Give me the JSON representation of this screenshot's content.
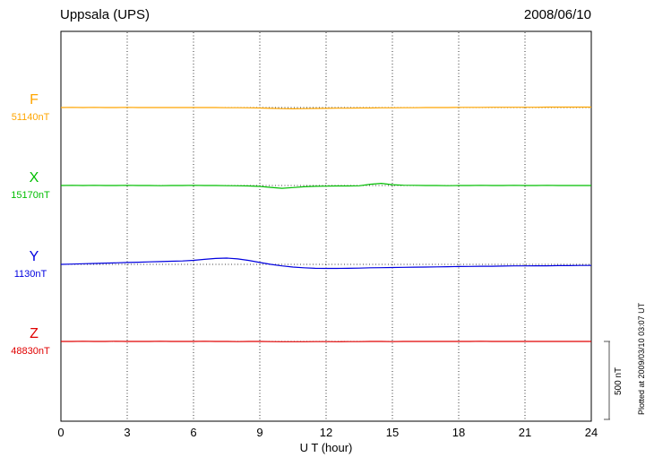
{
  "chart_data": {
    "type": "line",
    "title": "Uppsala (UPS)",
    "date": "2008/06/10",
    "xlabel": "U T (hour)",
    "x_ticks": [
      0,
      3,
      6,
      9,
      12,
      15,
      18,
      21,
      24
    ],
    "xlim": [
      0,
      24
    ],
    "x_step_hours": 0.5,
    "scale_label": "500 nT",
    "plotted_at": "Plotted at 2009/03/10 03:07 UT",
    "grid": "dotted-vertical-every-3h, dotted-horizontal-baseline-per-trace",
    "series": [
      {
        "name": "F",
        "baseline_label": "51140nT",
        "color": "#FFA500",
        "offsets_nT": [
          0,
          1,
          0,
          1,
          0,
          0,
          1,
          0,
          0,
          0,
          0,
          0,
          0,
          0,
          0,
          -1,
          -1,
          -2,
          -3,
          -5,
          -7,
          -8,
          -7,
          -6,
          -5,
          -4,
          -4,
          -3,
          -3,
          -2,
          -2,
          -1,
          -1,
          0,
          0,
          0,
          1,
          1,
          1,
          2,
          2,
          2,
          2,
          2,
          3,
          3,
          3,
          3,
          3
        ]
      },
      {
        "name": "X",
        "baseline_label": "15170nT",
        "color": "#00BE00",
        "offsets_nT": [
          0,
          1,
          0,
          1,
          0,
          0,
          1,
          0,
          0,
          -1,
          0,
          0,
          1,
          0,
          0,
          -1,
          -2,
          -3,
          -6,
          -12,
          -18,
          -13,
          -8,
          -5,
          -4,
          -3,
          -3,
          -2,
          8,
          14,
          5,
          2,
          1,
          0,
          0,
          -1,
          0,
          0,
          1,
          0,
          0,
          1,
          0,
          0,
          1,
          0,
          0,
          0,
          0
        ]
      },
      {
        "name": "Y",
        "baseline_label": "1130nT",
        "color": "#0000E0",
        "offsets_nT": [
          0,
          2,
          4,
          6,
          8,
          10,
          12,
          14,
          16,
          18,
          20,
          22,
          26,
          32,
          38,
          40,
          35,
          25,
          12,
          0,
          -10,
          -17,
          -22,
          -25,
          -26,
          -26,
          -25,
          -24,
          -22,
          -21,
          -20,
          -19,
          -18,
          -17,
          -16,
          -15,
          -14,
          -13,
          -12,
          -12,
          -11,
          -10,
          -10,
          -9,
          -9,
          -8,
          -8,
          -7,
          -7
        ]
      },
      {
        "name": "Z",
        "baseline_label": "48830nT",
        "color": "#E00000",
        "offsets_nT": [
          0,
          0,
          1,
          0,
          0,
          1,
          0,
          0,
          0,
          1,
          0,
          0,
          0,
          1,
          0,
          0,
          -1,
          0,
          0,
          -1,
          -2,
          -2,
          -2,
          -1,
          -1,
          -2,
          -1,
          -1,
          0,
          0,
          -1,
          0,
          0,
          0,
          0,
          0,
          0,
          0,
          1,
          0,
          0,
          0,
          0,
          0,
          0,
          0,
          0,
          0,
          0
        ]
      }
    ]
  }
}
